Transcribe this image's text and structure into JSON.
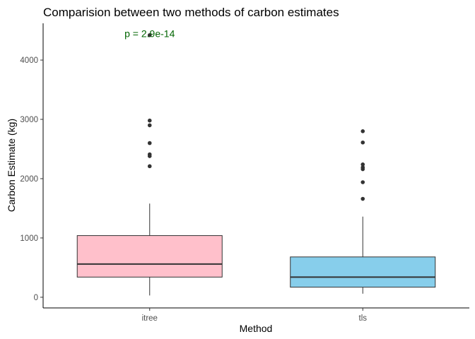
{
  "chart_data": {
    "type": "boxplot",
    "title": "Comparision between two methods of carbon estimates",
    "xlabel": "Method",
    "ylabel": "Carbon Estimate (kg)",
    "categories": [
      "itree",
      "tls"
    ],
    "ylim": [
      -180,
      4620
    ],
    "yticks": [
      0,
      1000,
      2000,
      3000,
      4000
    ],
    "grid": false,
    "legend": "none",
    "boxes": [
      {
        "name": "itree",
        "color": "#FFC0CB",
        "whisker_low": 30,
        "q1": 340,
        "median": 560,
        "q3": 1040,
        "whisker_high": 1580,
        "outliers": [
          2210,
          2380,
          2410,
          2600,
          2900,
          2980,
          4420
        ]
      },
      {
        "name": "tls",
        "color": "#87CEEB",
        "whisker_low": 60,
        "q1": 170,
        "median": 340,
        "q3": 680,
        "whisker_high": 1360,
        "outliers": [
          1660,
          1940,
          2160,
          2190,
          2240,
          2610,
          2800
        ]
      }
    ],
    "annotation": {
      "text": "p = 2.9e-14",
      "x_category": 0,
      "y": 4450,
      "color": "#006400"
    }
  }
}
